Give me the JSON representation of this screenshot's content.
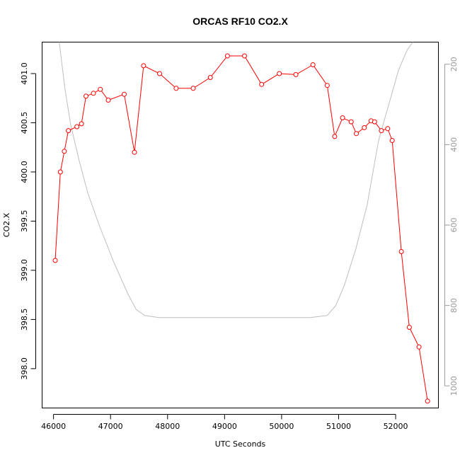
{
  "chart_data": {
    "type": "line",
    "title": "ORCAS RF10 CO2.X",
    "xlabel": "UTC Seconds",
    "ylabel": "CO2.X",
    "xlim": [
      45800,
      52750
    ],
    "ylim": [
      397.6,
      401.32
    ],
    "y2lim": [
      1055,
      145
    ],
    "x_ticks": [
      46000,
      47000,
      48000,
      49000,
      50000,
      51000,
      52000
    ],
    "y_ticks": [
      398.0,
      398.5,
      399.0,
      399.5,
      400.0,
      400.5,
      401.0
    ],
    "y2_ticks": [
      200,
      400,
      600,
      800,
      1000
    ],
    "grid": false,
    "colors": {
      "series": "#ff0000",
      "secondary": "#bebebe"
    },
    "series": [
      {
        "values": [
          [
            46030,
            399.1
          ],
          [
            46120,
            400.0
          ],
          [
            46190,
            400.21
          ],
          [
            46260,
            400.42
          ],
          [
            46410,
            400.46
          ],
          [
            46490,
            400.49
          ],
          [
            46570,
            400.77
          ],
          [
            46700,
            400.8
          ],
          [
            46820,
            400.84
          ],
          [
            46960,
            400.73
          ],
          [
            47240,
            400.79
          ],
          [
            47420,
            400.2
          ],
          [
            47580,
            401.08
          ],
          [
            47860,
            401.0
          ],
          [
            48150,
            400.85
          ],
          [
            48450,
            400.85
          ],
          [
            48750,
            400.96
          ],
          [
            49050,
            401.18
          ],
          [
            49350,
            401.18
          ],
          [
            49650,
            400.89
          ],
          [
            49960,
            401.0
          ],
          [
            50250,
            400.99
          ],
          [
            50550,
            401.09
          ],
          [
            50800,
            400.88
          ],
          [
            50930,
            400.36
          ],
          [
            51070,
            400.55
          ],
          [
            51220,
            400.51
          ],
          [
            51310,
            400.39
          ],
          [
            51450,
            400.45
          ],
          [
            51570,
            400.52
          ],
          [
            51630,
            400.51
          ],
          [
            51750,
            400.42
          ],
          [
            51860,
            400.44
          ],
          [
            51940,
            400.32
          ],
          [
            52100,
            399.19
          ],
          [
            52240,
            398.42
          ],
          [
            52410,
            398.22
          ],
          [
            52560,
            397.67
          ]
        ]
      },
      {
        "axis": "right",
        "values": [
          [
            46100,
            145
          ],
          [
            46200,
            260
          ],
          [
            46300,
            350
          ],
          [
            46450,
            440
          ],
          [
            46600,
            520
          ],
          [
            46800,
            600
          ],
          [
            47050,
            690
          ],
          [
            47300,
            770
          ],
          [
            47450,
            810
          ],
          [
            47600,
            825
          ],
          [
            47850,
            830
          ],
          [
            48500,
            830
          ],
          [
            49500,
            830
          ],
          [
            50500,
            830
          ],
          [
            50800,
            825
          ],
          [
            50950,
            800
          ],
          [
            51100,
            750
          ],
          [
            51300,
            660
          ],
          [
            51500,
            550
          ],
          [
            51700,
            390
          ],
          [
            51900,
            290
          ],
          [
            52050,
            215
          ],
          [
            52200,
            165
          ],
          [
            52300,
            145
          ]
        ]
      }
    ]
  }
}
